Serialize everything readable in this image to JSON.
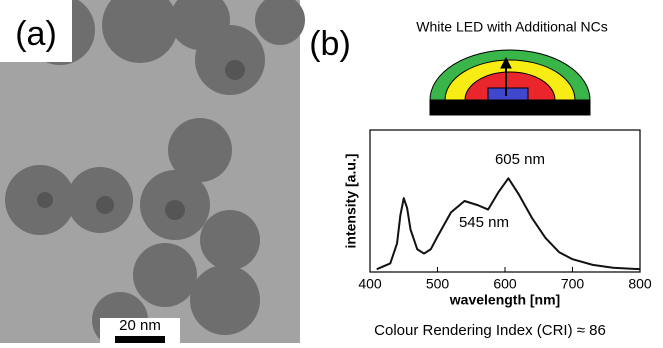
{
  "panels": {
    "a": {
      "label": "(a)",
      "scale_bar": "20 nm"
    },
    "b": {
      "label": "(b)",
      "led_title": "White LED with Additional NCs",
      "footer": "Colour Rendering Index (CRI) ≈ 86"
    }
  },
  "chart_data": {
    "type": "line",
    "xlabel": "wavelength [nm]",
    "ylabel": "intensity [a.u.]",
    "x": [
      410,
      430,
      440,
      445,
      450,
      455,
      460,
      470,
      480,
      490,
      500,
      520,
      540,
      560,
      575,
      590,
      605,
      620,
      640,
      660,
      680,
      700,
      730,
      760,
      800
    ],
    "series": [
      {
        "name": "spectrum",
        "color": "#111111",
        "values": [
          0.02,
          0.06,
          0.2,
          0.4,
          0.52,
          0.45,
          0.3,
          0.16,
          0.13,
          0.16,
          0.25,
          0.42,
          0.5,
          0.47,
          0.44,
          0.56,
          0.66,
          0.55,
          0.38,
          0.24,
          0.14,
          0.09,
          0.05,
          0.03,
          0.02
        ]
      }
    ],
    "xlim": [
      400,
      800
    ],
    "xticks": [
      400,
      500,
      600,
      700,
      800
    ],
    "ylim": [
      0,
      1
    ],
    "annotations": [
      "605 nm",
      "545 nm"
    ]
  }
}
